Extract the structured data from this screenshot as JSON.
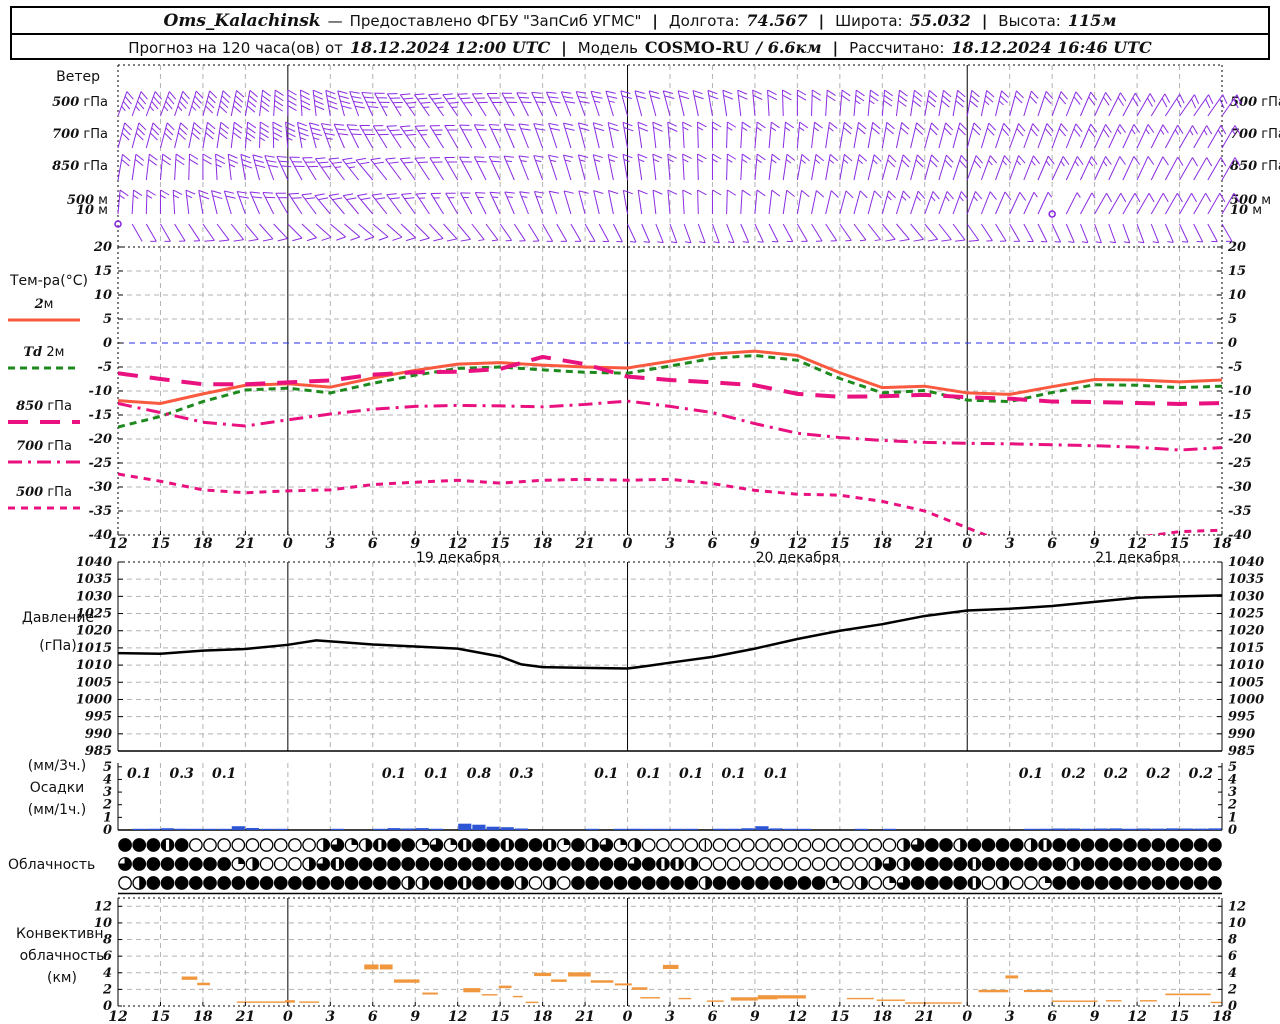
{
  "header": {
    "station": "Oms_Kalachinsk",
    "dash": "—",
    "provider_label": "Предоставлено ФГБУ \"ЗапСиб УГМС\"",
    "sep": "|",
    "lon_label": "Долгота:",
    "lon": "74.567",
    "lat_label": "Широта:",
    "lat": "55.032",
    "alt_label": "Высота:",
    "alt": "115м",
    "line2_prefix": "Прогноз на 120 часа(ов) от",
    "run_time": "18.12.2024 12:00 UTC",
    "model_label": "Модель",
    "model": "COSMO-RU",
    "model_res": "/ 6.6км",
    "calc_label": "Рассчитано:",
    "calc_time": "18.12.2024 16:46 UTC"
  },
  "labels": {
    "wind_title": "Ветер",
    "temp_title": "Тем-ра(°C)",
    "pressure_title": [
      "Давление",
      "(гПа)"
    ],
    "precip_title": [
      "(мм/3ч.)",
      "Осадки",
      "(мм/1ч.)"
    ],
    "clouds_title": "Облачность",
    "conv_title": [
      "Конвективн.",
      "облачность",
      "(км)"
    ]
  },
  "chart_data": {
    "type": "meteogram",
    "x_axis": {
      "hours_total": 78,
      "tick_step_hours": 3,
      "tick_labels": [
        "12",
        "15",
        "18",
        "21",
        "0",
        "3",
        "6",
        "9",
        "12",
        "15",
        "18",
        "21",
        "0",
        "3",
        "6",
        "9",
        "12",
        "15",
        "18",
        "21",
        "0",
        "3",
        "6",
        "9",
        "12",
        "15",
        "18"
      ],
      "day_labels": [
        {
          "text": "19 декабря",
          "tick": 8
        },
        {
          "text": "20 декабря",
          "tick": 16
        },
        {
          "text": "21 декабря",
          "tick": 24
        }
      ],
      "day_line_ticks": [
        4,
        12,
        20
      ]
    },
    "wind": {
      "color": "#8b2be2",
      "rows": [
        {
          "label_num": "500",
          "label_unit": " гПа",
          "y": 116,
          "len": 26,
          "dir": [
            20,
            20,
            15,
            10,
            0,
            -10,
            -25,
            -35,
            -35,
            -30,
            -25,
            -20,
            -15,
            -15,
            -10,
            -5,
            0,
            5,
            5,
            10,
            10,
            15,
            20,
            25,
            30,
            35,
            35
          ],
          "spd": [
            18,
            18,
            20,
            20,
            22,
            22,
            20,
            18,
            18,
            15,
            15,
            15,
            12,
            12,
            12,
            10,
            12,
            12,
            15,
            15,
            15,
            12,
            12,
            10,
            10,
            12,
            12
          ]
        },
        {
          "label_num": "700",
          "label_unit": " гПа",
          "y": 148,
          "len": 26,
          "dir": [
            15,
            15,
            10,
            5,
            -5,
            -20,
            -30,
            -35,
            -30,
            -25,
            -20,
            -15,
            -10,
            -5,
            0,
            5,
            5,
            10,
            10,
            15,
            15,
            20,
            20,
            25,
            25,
            30,
            30
          ],
          "spd": [
            15,
            15,
            15,
            18,
            18,
            18,
            15,
            15,
            12,
            12,
            10,
            10,
            10,
            10,
            8,
            8,
            8,
            10,
            10,
            12,
            12,
            12,
            10,
            10,
            8,
            8,
            8
          ]
        },
        {
          "label_num": "850",
          "label_unit": " гПа",
          "y": 180,
          "len": 26,
          "dir": [
            10,
            5,
            0,
            -10,
            -25,
            -35,
            -40,
            -35,
            -30,
            -25,
            -20,
            -15,
            -10,
            -5,
            0,
            5,
            10,
            10,
            15,
            15,
            20,
            20,
            25,
            25,
            25,
            30,
            30
          ],
          "spd": [
            12,
            12,
            12,
            15,
            15,
            15,
            12,
            12,
            10,
            10,
            8,
            8,
            8,
            8,
            8,
            8,
            8,
            8,
            10,
            10,
            10,
            8,
            8,
            8,
            6,
            6,
            6
          ]
        },
        {
          "label_num": "500",
          "label_unit": " м",
          "y": 214,
          "len": 24,
          "dir": [
            5,
            0,
            -10,
            -20,
            -30,
            -40,
            -40,
            -35,
            -30,
            -25,
            -20,
            -15,
            -10,
            -5,
            0,
            5,
            10,
            15,
            15,
            20,
            20,
            25,
            25,
            30,
            30,
            30,
            30
          ],
          "spd": [
            8,
            8,
            10,
            10,
            12,
            12,
            10,
            10,
            8,
            8,
            8,
            6,
            6,
            6,
            6,
            6,
            6,
            6,
            8,
            8,
            8,
            6,
            1,
            6,
            5,
            5,
            5
          ]
        },
        {
          "label_num": "10",
          "label_unit": " м",
          "y": 224,
          "len": 20,
          "dir": [
            150,
            150,
            145,
            140,
            135,
            130,
            130,
            135,
            140,
            145,
            150,
            150,
            155,
            160,
            160,
            155,
            150,
            145,
            140,
            140,
            145,
            150,
            155,
            160,
            160,
            155,
            150
          ],
          "spd": [
            1,
            4,
            5,
            5,
            5,
            6,
            6,
            5,
            5,
            4,
            4,
            4,
            3,
            3,
            3,
            3,
            4,
            4,
            5,
            5,
            5,
            4,
            4,
            3,
            3,
            4,
            4
          ]
        }
      ]
    },
    "temperature": {
      "ylim": [
        -40,
        20
      ],
      "grid_step": 5,
      "zero_line_color": "#2a2ae8",
      "series": [
        {
          "id": "t2m",
          "label_num": "2",
          "label_unit": "м",
          "color": "#f9593f",
          "width": 3,
          "dash": "",
          "values": [
            -12.0,
            -12.6,
            -10.6,
            -8.8,
            -8.5,
            -9.2,
            -7.3,
            -5.7,
            -4.4,
            -4.1,
            -4.6,
            -5.0,
            -5.2,
            -3.8,
            -2.3,
            -1.7,
            -2.6,
            -6.2,
            -9.3,
            -9.0,
            -10.4,
            -10.7,
            -9.1,
            -7.6,
            -7.7,
            -8.1,
            -7.7
          ]
        },
        {
          "id": "td2m",
          "label_num": "Td",
          "label_unit": " 2м",
          "color": "#1e8a1e",
          "width": 3,
          "dash": "7,5",
          "values": [
            -17.5,
            -15.3,
            -12.2,
            -9.8,
            -9.4,
            -10.4,
            -8.4,
            -6.7,
            -5.3,
            -5.0,
            -5.6,
            -6.1,
            -6.3,
            -4.8,
            -3.2,
            -2.6,
            -3.6,
            -7.4,
            -10.4,
            -9.9,
            -11.9,
            -12.2,
            -10.3,
            -8.7,
            -8.8,
            -9.3,
            -9.0
          ]
        },
        {
          "id": "t850",
          "label_num": "850",
          "label_unit": " гПа",
          "color": "#e8117f",
          "width": 4,
          "dash": "20,12",
          "values": [
            -6.3,
            -7.5,
            -8.6,
            -8.6,
            -8.2,
            -7.8,
            -6.6,
            -6.1,
            -6.0,
            -5.4,
            -2.9,
            -4.4,
            -7.0,
            -7.7,
            -8.2,
            -8.8,
            -10.6,
            -11.2,
            -11.1,
            -10.8,
            -11.3,
            -11.6,
            -12.2,
            -12.3,
            -12.5,
            -12.7,
            -12.5
          ]
        },
        {
          "id": "t700",
          "label_num": "700",
          "label_unit": " гПа",
          "color": "#e8117f",
          "width": 3,
          "dash": "14,6,3,6",
          "values": [
            -12.6,
            -14.5,
            -16.5,
            -17.3,
            -16.0,
            -14.8,
            -13.8,
            -13.2,
            -13.0,
            -13.1,
            -13.3,
            -12.8,
            -12.1,
            -13.2,
            -14.5,
            -16.8,
            -18.8,
            -19.7,
            -20.3,
            -20.7,
            -20.9,
            -21.0,
            -21.2,
            -21.4,
            -21.7,
            -22.3,
            -21.8
          ]
        },
        {
          "id": "t500",
          "label_num": "500",
          "label_unit": " гПа",
          "color": "#e8117f",
          "width": 3,
          "dash": "7,6",
          "values": [
            -27.3,
            -28.8,
            -30.6,
            -31.2,
            -30.8,
            -30.6,
            -29.5,
            -29.0,
            -28.6,
            -29.2,
            -28.6,
            -28.4,
            -28.6,
            -28.4,
            -29.3,
            -30.7,
            -31.5,
            -31.7,
            -33.0,
            -35.0,
            -38.5,
            -42.0,
            -43.0,
            -42.0,
            -40.5,
            -39.3,
            -39.0
          ]
        }
      ]
    },
    "pressure": {
      "ylim": [
        985,
        1040
      ],
      "grid_step": 5,
      "color": "#000000",
      "points": [
        [
          0,
          1013.5
        ],
        [
          3,
          1013.3
        ],
        [
          6,
          1014.2
        ],
        [
          9,
          1014.7
        ],
        [
          12,
          1015.9
        ],
        [
          14,
          1017.2
        ],
        [
          16,
          1016.6
        ],
        [
          18,
          1016.0
        ],
        [
          21,
          1015.4
        ],
        [
          24,
          1014.8
        ],
        [
          27,
          1012.5
        ],
        [
          28.5,
          1010.2
        ],
        [
          30,
          1009.4
        ],
        [
          33,
          1009.2
        ],
        [
          36,
          1009.0
        ],
        [
          37.5,
          1009.8
        ],
        [
          39,
          1010.7
        ],
        [
          42,
          1012.4
        ],
        [
          45,
          1014.8
        ],
        [
          48,
          1017.6
        ],
        [
          51,
          1020.0
        ],
        [
          54,
          1021.9
        ],
        [
          57,
          1024.3
        ],
        [
          60,
          1025.9
        ],
        [
          63,
          1026.4
        ],
        [
          66,
          1027.2
        ],
        [
          69,
          1028.4
        ],
        [
          72,
          1029.6
        ],
        [
          75,
          1030.0
        ],
        [
          78,
          1030.3
        ]
      ]
    },
    "precip": {
      "bar_color": "#2e55d4",
      "ylim": [
        0,
        5
      ],
      "amounts_3h": [
        {
          "interval": 0,
          "text": "0.1"
        },
        {
          "interval": 1,
          "text": "0.3"
        },
        {
          "interval": 2,
          "text": "0.1"
        },
        {
          "interval": 6,
          "text": "0.1"
        },
        {
          "interval": 7,
          "text": "0.1"
        },
        {
          "interval": 8,
          "text": "0.8"
        },
        {
          "interval": 9,
          "text": "0.3"
        },
        {
          "interval": 11,
          "text": "0.1"
        },
        {
          "interval": 12,
          "text": "0.1"
        },
        {
          "interval": 13,
          "text": "0.1"
        },
        {
          "interval": 14,
          "text": "0.1"
        },
        {
          "interval": 15,
          "text": "0.1"
        },
        {
          "interval": 21,
          "text": "0.1"
        },
        {
          "interval": 22,
          "text": "0.2"
        },
        {
          "interval": 23,
          "text": "0.2"
        },
        {
          "interval": 24,
          "text": "0.2"
        },
        {
          "interval": 25,
          "text": "0.2"
        }
      ],
      "hourly_mm": [
        0,
        0.06,
        0.1,
        0.14,
        0.1,
        0.08,
        0.05,
        0.06,
        0.3,
        0.16,
        0.08,
        0.05,
        0,
        0,
        0,
        0.07,
        0,
        0,
        0.06,
        0.15,
        0.12,
        0.15,
        0.1,
        0,
        0.5,
        0.42,
        0.26,
        0.22,
        0.12,
        0,
        0,
        0,
        0,
        0.06,
        0,
        0.09,
        0.1,
        0.08,
        0.05,
        0.07,
        0.05,
        0,
        0.1,
        0.1,
        0.14,
        0.3,
        0.13,
        0.1,
        0.09,
        0,
        0,
        0,
        0.07,
        0,
        0.08,
        0,
        0,
        0,
        0,
        0,
        0,
        0,
        0,
        0,
        0.08,
        0.1,
        0.12,
        0.12,
        0.1,
        0.12,
        0.13,
        0.1,
        0.12,
        0.11,
        0.13,
        0.12,
        0.11,
        0.13
      ]
    },
    "clouds": {
      "symbol_color": "#000000",
      "rows": [
        "fffbfeeeeeeeeehtqhbffqtqbffbffbqfhtqheeeeleeeeeeeeeeeeehtffhffffhbffffffffffff",
        "tfffffffqheeehtbfffffffffffffffffffftfbbheeeeeeeeeeeehthffffbffffffhffffffffff",
        "ehffffffffffffffffffhhffbfffhehefffffffffhffffffffqeheqtffffbeheeqfffffffffffff"
      ]
    },
    "convective": {
      "color": "#f0963c",
      "ylim": [
        0,
        13
      ],
      "grid_step": 2,
      "segments": [
        [
          4.5,
          5.6,
          3.35,
          0.2
        ],
        [
          5.6,
          6.5,
          2.65,
          0.15
        ],
        [
          8.4,
          11.8,
          0.5,
          0.05
        ],
        [
          11.8,
          12.5,
          0.55,
          0.15
        ],
        [
          12.8,
          14.2,
          0.5,
          0.05
        ],
        [
          17.4,
          18.4,
          4.7,
          0.3
        ],
        [
          18.5,
          19.4,
          4.7,
          0.3
        ],
        [
          19.5,
          21.3,
          3.0,
          0.2
        ],
        [
          21.5,
          22.6,
          1.5,
          0.12
        ],
        [
          24.4,
          25.6,
          1.9,
          0.25
        ],
        [
          25.7,
          26.8,
          1.35,
          0.08
        ],
        [
          26.9,
          27.8,
          2.3,
          0.15
        ],
        [
          27.9,
          28.6,
          1.15,
          0.07
        ],
        [
          28.8,
          29.7,
          0.45,
          0.07
        ],
        [
          29.4,
          30.6,
          3.8,
          0.2
        ],
        [
          30.6,
          31.7,
          3.05,
          0.15
        ],
        [
          31.8,
          33.4,
          3.8,
          0.25
        ],
        [
          33.4,
          35.0,
          2.95,
          0.15
        ],
        [
          35.1,
          36.3,
          2.6,
          0.12
        ],
        [
          36.3,
          37.4,
          2.1,
          0.15
        ],
        [
          36.9,
          38.3,
          1.0,
          0.07
        ],
        [
          38.5,
          39.6,
          4.7,
          0.25
        ],
        [
          39.6,
          40.5,
          0.9,
          0.08
        ],
        [
          41.6,
          42.8,
          0.6,
          0.07
        ],
        [
          43.3,
          45.2,
          0.85,
          0.2
        ],
        [
          45.2,
          46.6,
          1.05,
          0.25
        ],
        [
          46.6,
          48.6,
          1.1,
          0.2
        ],
        [
          51.5,
          53.4,
          0.9,
          0.08
        ],
        [
          53.6,
          55.6,
          0.7,
          0.08
        ],
        [
          55.6,
          59.6,
          0.4,
          0.04
        ],
        [
          60.8,
          62.9,
          1.8,
          0.15
        ],
        [
          62.7,
          63.6,
          3.5,
          0.18
        ],
        [
          64.0,
          66.0,
          1.8,
          0.13
        ],
        [
          66.0,
          69.2,
          0.6,
          0.06
        ],
        [
          69.8,
          70.9,
          0.65,
          0.06
        ],
        [
          72.2,
          73.4,
          0.65,
          0.06
        ],
        [
          74.0,
          77.2,
          1.4,
          0.1
        ],
        [
          77.2,
          78.0,
          0.45,
          0.06
        ]
      ]
    }
  }
}
